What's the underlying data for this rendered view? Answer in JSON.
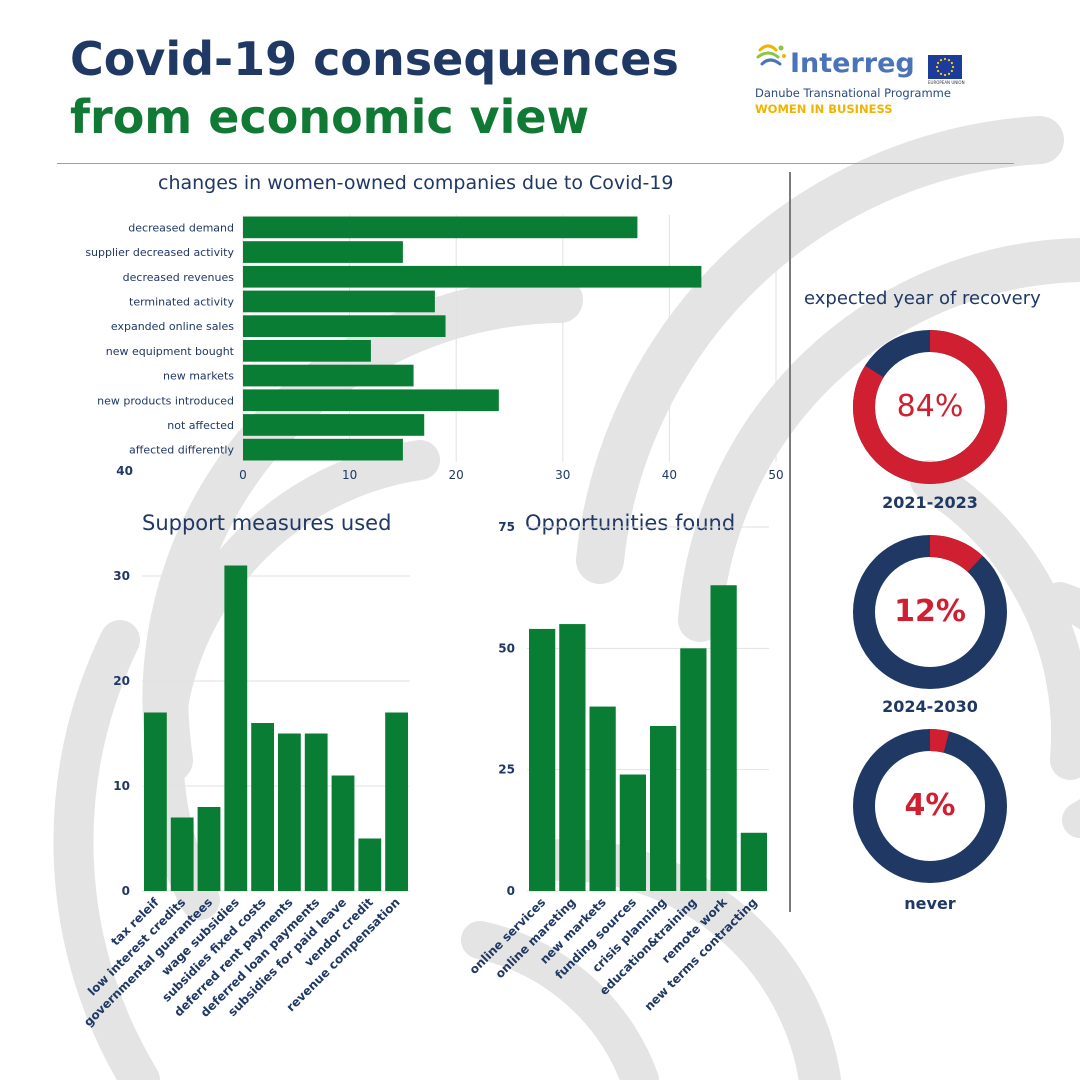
{
  "header": {
    "title_line1": "Covid-19 consequences",
    "title_line2": "from economic view"
  },
  "logo": {
    "wordmark": "Interreg",
    "programme": "Danube Transnational Programme",
    "project": "WOMEN IN BUSINESS",
    "eu_caption": "EUROPEAN UNION"
  },
  "colors": {
    "navy": "#1f3864",
    "green": "#107a35",
    "bar_green": "#0a7d34",
    "red": "#cf1f30",
    "donut_navy": "#1f3864",
    "grid": "#e2e2e2"
  },
  "chart_data": [
    {
      "type": "bar",
      "orientation": "horizontal",
      "title": "changes in women-owned companies due to Covid-19",
      "categories": [
        "decreased demand",
        "supplier decreased activity",
        "decreased revenues",
        "terminated activity",
        "expanded online sales",
        "new equipment bought",
        "new markets",
        "new products introduced",
        "not affected",
        "affected differently"
      ],
      "values": [
        37,
        15,
        43,
        18,
        19,
        12,
        16,
        24,
        17,
        15
      ],
      "xticks": [
        0,
        10,
        20,
        30,
        40,
        50
      ],
      "xlim": [
        0,
        50
      ],
      "extra_tick_label": "40",
      "grid": true
    },
    {
      "type": "bar",
      "title": "Support measures used",
      "categories": [
        "tax releif",
        "low interest credits",
        "governmental guarantees",
        "wage subsidies",
        "subsidies fixed costs",
        "deferred rent payments",
        "deferred loan payments",
        "subsidies for paid leave",
        "vendor credit",
        "revenue compensation"
      ],
      "values": [
        17,
        7,
        8,
        31,
        16,
        15,
        15,
        11,
        5,
        17
      ],
      "yticks": [
        0,
        10,
        20,
        30
      ],
      "ylim": [
        0,
        32
      ],
      "grid": true
    },
    {
      "type": "bar",
      "title": "Opportunities found",
      "categories": [
        "online services",
        "online mareting",
        "new markets",
        "funding sources",
        "crisis planning",
        "education&training",
        "remote work",
        "new terms contracting"
      ],
      "values": [
        54,
        55,
        38,
        24,
        34,
        50,
        63,
        12
      ],
      "yticks": [
        0,
        25,
        50,
        75
      ],
      "ylim": [
        0,
        75
      ],
      "grid": true
    },
    {
      "type": "pie",
      "title": "expected year of recovery",
      "style": "donut",
      "slices": [
        {
          "label": "2021-2023",
          "value": 84,
          "display": "84%"
        },
        {
          "label": "2024-2030",
          "value": 12,
          "display": "12%"
        },
        {
          "label": "never",
          "value": 4,
          "display": "4%"
        }
      ]
    }
  ]
}
